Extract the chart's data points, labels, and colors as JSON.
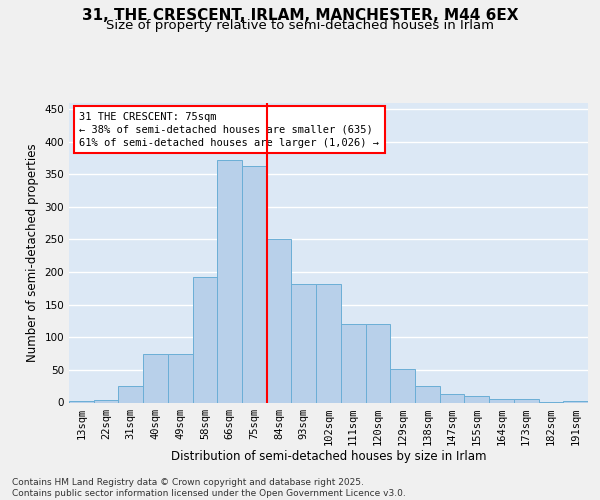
{
  "title_line1": "31, THE CRESCENT, IRLAM, MANCHESTER, M44 6EX",
  "title_line2": "Size of property relative to semi-detached houses in Irlam",
  "xlabel": "Distribution of semi-detached houses by size in Irlam",
  "ylabel": "Number of semi-detached properties",
  "categories": [
    "13sqm",
    "22sqm",
    "31sqm",
    "40sqm",
    "49sqm",
    "58sqm",
    "66sqm",
    "75sqm",
    "84sqm",
    "93sqm",
    "102sqm",
    "111sqm",
    "120sqm",
    "129sqm",
    "138sqm",
    "147sqm",
    "155sqm",
    "164sqm",
    "173sqm",
    "182sqm",
    "191sqm"
  ],
  "values": [
    2,
    4,
    25,
    75,
    75,
    193,
    372,
    362,
    250,
    181,
    181,
    120,
    120,
    52,
    25,
    13,
    10,
    5,
    5,
    1,
    3
  ],
  "bar_color": "#b8d0ea",
  "bar_edge_color": "#6baed6",
  "background_color": "#dce8f5",
  "grid_color": "#ffffff",
  "annotation_text_line1": "31 THE CRESCENT: 75sqm",
  "annotation_text_line2": "← 38% of semi-detached houses are smaller (635)",
  "annotation_text_line3": "61% of semi-detached houses are larger (1,026) →",
  "red_line_x": 7.5,
  "ylim": [
    0,
    460
  ],
  "yticks": [
    0,
    50,
    100,
    150,
    200,
    250,
    300,
    350,
    400,
    450
  ],
  "footer_line1": "Contains HM Land Registry data © Crown copyright and database right 2025.",
  "footer_line2": "Contains public sector information licensed under the Open Government Licence v3.0.",
  "title_fontsize": 11,
  "subtitle_fontsize": 9.5,
  "ylabel_fontsize": 8.5,
  "xlabel_fontsize": 8.5,
  "tick_fontsize": 7.5,
  "annotation_fontsize": 7.5,
  "footer_fontsize": 6.5,
  "fig_bg": "#f0f0f0"
}
